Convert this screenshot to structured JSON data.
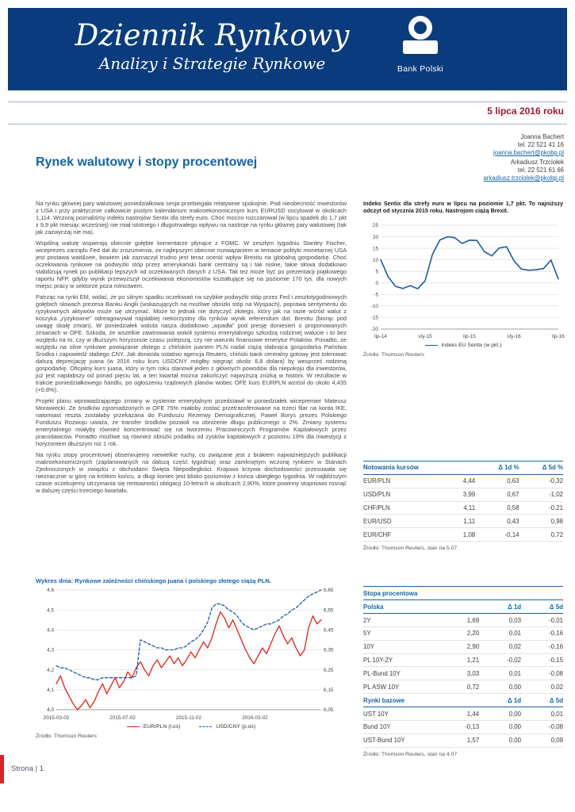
{
  "header": {
    "title": "Dziennik Rynkowy",
    "subtitle": "Analizy i Strategie Rynkowe",
    "logo_label": "Bank Polski",
    "date": "5 lipca 2016 roku"
  },
  "contacts": [
    {
      "name": "Joanna Bachert",
      "phone": "tel. 22 521 41 16",
      "email": "joanna.bachert@pkobp.pl"
    },
    {
      "name": "Arkadiusz Trzciołek",
      "phone": "tel. 22 521 61 66",
      "email": "arkadiusz.trzciolek@pkobp.pl"
    }
  ],
  "main": {
    "heading": "Rynek walutowy i stopy procentowej",
    "paragraphs": [
      "Na rynku głównej pary walutowej poniedziałkowa sesja przebiegała relatywnie spokojnie. Pod nieobecność inwestorów z USA i przy praktycznie całkowicie pustym kalendarium makroekonomicznym kurs EURUSD oscylował w okolicach 1,114. Wczoraj poznaliśmy indeks nastrojów Sentix dla strefy euro. Choć mocno rozczarował (w lipcu spadek do 1,7 pkt z 9,9 pkt miesiąc wcześniej) nie miał istotnego i długotrwałego wpływu na nastroje na rynku głównej pary walutowej (tak jak zazwyczaj nie ma).",
      "Wspólną walutę wspierają obecnie gołębie komentarze płynące z FOMC. W zeszłym tygodniu Stanley Fischer, wiceprezes zarządu Fed dał do zrozumienia, że najlepszym obecnie rozwiązaniem w temacie polityki monetarnej USA jest postawa wait&see, bowiem jak zaznaczył trudno jest teraz ocenić wpływ Brexitu na globalną gospodarkę. Choć oczekiwania rynkowe na podwyżki stóp przez amerykański bank centralny są i tak niskie, takie słowa dodatkowo stabilizują rynek po publikacji lepszych od oczekiwanych danych z USA. Tak też może być po prezentacji piątkowego raportu NFP, gdyby wynik przewyższył oczekiwania ekonomistów kształtujące się na poziomie 170 tys. dla nowych miejsc pracy w sektorze poza rolnictwem.",
      "Patrząc na rynki EM, widać, że po silnym spadku oczekiwań na szybkie podwyżki stóp przez Fed i zeszłotygodniowych gołębich słowach prezesa Banku Anglii (wskazujących na możliwe obniżki stóp na Wyspach), poprawa sentymentu do ryzykownych aktywów może się utrzymać. Może to jednak nie dotyczyć złotego, który jak na razie wśród walut z koszyka „ryzykowne” odreagowywał najsłabiej niekorzystny dla rynków wynik referendum dot. Brexitu (biorąc pod uwagę skalę zmian). W poniedziałek waluta nasza dodatkowo „wpadła” pod presję doniesień o proponowanych zmianach w OFE. Szkoda, że wszelkie zawirowania wokół systemu emerytalnego szkodzą rodzimej walucie i to bez względu na to, czy w dłuższym horyzoncie czasu polepszą, czy nie warunki finansowe emerytur Polaków. Ponadto, ze względu na silne rynkowe powiązanie złotego z chińskim juanem PLN nadal ciążą słabnąca gospodarka Państwa Środka i zapowiedź słabego CNY. Jak doniosła ostatnio agencja Reuters, chiński bank centralny gotowy jest tolerować dalszą deprecjację juana (w 2016 roku kurs USDCNY mógłby sięgnąć okolic 6,8 dolara) by wesprzeć rodzimą gospodarkę. Oficjalny kurs juana, który w tym roku stanowił jeden z głównych powodów dla niepokoju dla inwestorów, już jest najsłabszy od ponad pięciu lat, a ten kwartał można zakończyć najwyższą zniżką w historii. W rezultacie w trakcie poniedziałkowego handlu, po ogłoszeniu rządowych planów wobec OFE kurs EURPLN wzrósł do około 4,435 (+0,8%).",
      "Projekt planu wprowadzającego zmiany w systemie emerytalnym przedstawił w poniedziałek wicepremier Mateusz Morawiecki. Ze środków zgromadzonych w OFE 75% miałoby zostać przetransferowane na trzeci filar na konta IKE, natomiast reszta zostałaby przekazana do Funduszu Rezerwy Demograficznej. Paweł Borys prezes Polskiego Funduszu Rozwoju uważa, że transfer środków pozwoli na obniżenie długu publicznego o 2%. Zmiany systemu emerytalnego miałyby również koncentrować się na tworzeniu Pracowniczych Programów Kapitałowych przez pracodawców. Ponadto możliwe są również obniżki podatku od zysków kapitałowych z poziomu 19% dla inwestycji z horyzontem dłuższym niż 1 rok.",
      "Na rynku stopy procentowej obserwujemy niewielkie ruchy, co związane jest z brakiem najważniejszych publikacji makroekonomicznych (zaplanowanych na dalszą część tygodnia) oraz zamkniętym wczoraj rynkiem w Stanach Zjednoczonych w związku z obchodami Święta Niepodległości. Krajowa krzywa dochodowości przesuwała się nieznacznie w górę na krótkim końcu, a długi koniec jest blisko poziomów z końca ubiegłego tygodnia. W najbliższym czasie oczekujemy utrzymania się rentowności obligacji 10-letnich w okolicach 2,90%, które powinny stopniowo rosnąć w dalszej części trzeciego kwartału."
    ]
  },
  "sidebar": {
    "note": "Indeks Sentix dla strefy euro w lipcu na poziomie 1,7 pkt. To najniższy odczyt od stycznia 2015 roku. Nastrojom ciążą Brexit.",
    "sentix_legend": "indeks EU Sentix (w pkt.)",
    "sentix_source": "Źródło: Thomson Reuters",
    "fx_table": {
      "title": "Notowania kursów",
      "d1": "Δ 1d %",
      "d5": "Δ 5d %",
      "rows": [
        [
          "EUR/PLN",
          "4,44",
          "0,63",
          "-0,32"
        ],
        [
          "USD/PLN",
          "3,99",
          "0,67",
          "-1,02"
        ],
        [
          "CHF/PLN",
          "4,11",
          "0,58",
          "-0,21"
        ],
        [
          "EUR/USD",
          "1,11",
          "0,43",
          "0,98"
        ],
        [
          "EUR/CHF",
          "1,08",
          "-0,14",
          "0,72"
        ]
      ],
      "source": "Źródło: Thomson Reuters, stan na 5.07"
    },
    "rates_table": {
      "title": "Stopa procentowa",
      "group1": "Polska",
      "d1": "Δ 1d",
      "d5": "Δ 5d",
      "rows1": [
        [
          "2Y",
          "1,69",
          "0,03",
          "-0,01"
        ],
        [
          "5Y",
          "2,20",
          "0,01",
          "-0,16"
        ],
        [
          "10Y",
          "2,90",
          "0,02",
          "-0,16"
        ],
        [
          "PL 10Y-2Y",
          "1,21",
          "-0,02",
          "-0,15"
        ],
        [
          "PL-Bund 10Y",
          "3,03",
          "0,01",
          "-0,08"
        ],
        [
          "PL ASW 10Y",
          "0,72",
          "0,00",
          "0,02"
        ]
      ],
      "group2": "Rynki bazowe",
      "rows2": [
        [
          "UST 10Y",
          "1,44",
          "0,00",
          "0,01"
        ],
        [
          "Bund 10Y",
          "-0,13",
          "0,00",
          "-0,08"
        ],
        [
          "UST-Bund 10Y",
          "1,57",
          "0,00",
          "0,09"
        ]
      ],
      "source": "Źródło: Thomson Reuters, stan na 4.07"
    }
  },
  "day_chart": {
    "title": "Wykres dnia: Rynkowe zależności chińskiego juana i polskiego złotego ciążą PLN.",
    "legend": [
      "EUR/PLN (l.oś)",
      "USD/CNY (p.oś)"
    ],
    "source": "Źródło: Thomson Reuters"
  },
  "footer": {
    "page_label": "Strona | 1"
  },
  "chart_data": [
    {
      "id": "sentix",
      "type": "line",
      "title": "indeks EU Sentix (w pkt.)",
      "x_tick_labels": [
        "lip-14",
        "sty-15",
        "lip-15",
        "sty-16",
        "lip-16"
      ],
      "x_tick_positions": [
        0,
        0.25,
        0.5,
        0.75,
        1
      ],
      "ylim": [
        -20,
        25
      ],
      "yticks": [
        25,
        20,
        15,
        10,
        5,
        0,
        -5,
        -10,
        -15,
        -20
      ],
      "grid": true,
      "legend_position": "bottom",
      "series": [
        {
          "name": "indeks EU Sentix (w pkt.)",
          "color": "#2159A5",
          "dash": false,
          "values": [
            10.1,
            2.7,
            -1.5,
            -2.4,
            -1.2,
            -2.5,
            0.9,
            12.4,
            18.6,
            20.0,
            19.6,
            17.1,
            18.5,
            18.4,
            13.6,
            11.7,
            15.1,
            15.7,
            9.6,
            6.0,
            5.5,
            5.7,
            6.2,
            9.9,
            1.7
          ]
        }
      ]
    },
    {
      "id": "day",
      "type": "line",
      "dual_axis": true,
      "title": "Wykres dnia: Rynkowe zależności chińskiego juana i polskiego złotego ciążą PLN.",
      "x_tick_labels": [
        "2015-03-02",
        "2015-07-02",
        "2015-11-02",
        "2016-03-02"
      ],
      "x_tick_positions": [
        0,
        0.25,
        0.5,
        0.75
      ],
      "left_ylim": [
        4.0,
        4.6
      ],
      "left_ytick_values": [
        4.0,
        4.1,
        4.2,
        4.3,
        4.4,
        4.5,
        4.6
      ],
      "left_ytick_labels": [
        "4,0",
        "4,1",
        "4,2",
        "4,3",
        "4,4",
        "4,5",
        "4,6"
      ],
      "right_ylim": [
        6.05,
        6.65
      ],
      "right_ytick_values": [
        6.05,
        6.15,
        6.25,
        6.35,
        6.45,
        6.55,
        6.65
      ],
      "right_ytick_labels": [
        "6,05",
        "6,15",
        "6,25",
        "6,35",
        "6,45",
        "6,55",
        "6,65"
      ],
      "grid": true,
      "legend_position": "bottom",
      "series": [
        {
          "name": "EUR/PLN (l.oś)",
          "axis": "left",
          "color": "#E2231A",
          "dash": false,
          "values": [
            4.13,
            4.17,
            4.11,
            4.07,
            4.03,
            4.0,
            4.02,
            4.05,
            4.01,
            4.04,
            4.09,
            4.13,
            4.08,
            4.12,
            4.16,
            4.11,
            4.14,
            4.19,
            4.16,
            4.21,
            4.24,
            4.2,
            4.17,
            4.22,
            4.25,
            4.21,
            4.24,
            4.27,
            4.23,
            4.26,
            4.22,
            4.25,
            4.29,
            4.26,
            4.3,
            4.34,
            4.31,
            4.36,
            4.43,
            4.49,
            4.46,
            4.41,
            4.45,
            4.4,
            4.35,
            4.3,
            4.26,
            4.23,
            4.27,
            4.31,
            4.28,
            4.33,
            4.38,
            4.42,
            4.37,
            4.33,
            4.36,
            4.31,
            4.27,
            4.3,
            4.41,
            4.47,
            4.43,
            4.45
          ]
        },
        {
          "name": "USD/CNY (p.oś)",
          "axis": "right",
          "color": "#2159A5",
          "dash": true,
          "values": [
            6.27,
            6.26,
            6.26,
            6.25,
            6.24,
            6.23,
            6.22,
            6.21,
            6.21,
            6.2,
            6.2,
            6.21,
            6.21,
            6.21,
            6.21,
            6.21,
            6.21,
            6.21,
            6.21,
            6.22,
            6.4,
            6.39,
            6.38,
            6.37,
            6.36,
            6.36,
            6.35,
            6.35,
            6.35,
            6.36,
            6.36,
            6.37,
            6.39,
            6.4,
            6.42,
            6.45,
            6.49,
            6.56,
            6.58,
            6.58,
            6.57,
            6.55,
            6.54,
            6.52,
            6.49,
            6.47,
            6.46,
            6.45,
            6.46,
            6.47,
            6.48,
            6.48,
            6.49,
            6.5,
            6.52,
            6.53,
            6.55,
            6.56,
            6.58,
            6.6,
            6.62,
            6.63,
            6.64,
            6.65
          ]
        }
      ]
    }
  ]
}
